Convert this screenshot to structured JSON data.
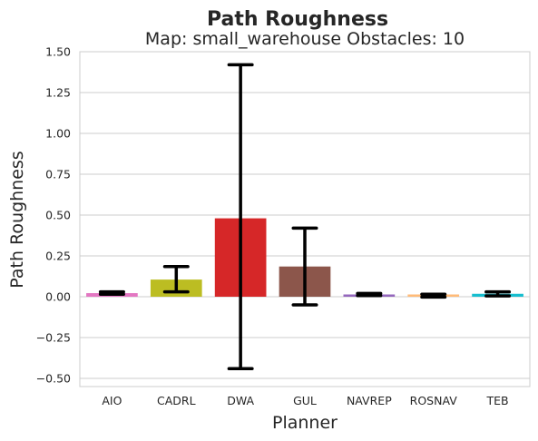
{
  "chart_data": {
    "type": "bar",
    "title": "Path Roughness",
    "subtitle": "Map: small_warehouse Obstacles: 10",
    "xlabel": "Planner",
    "ylabel": "Path Roughness",
    "ylim": [
      -0.55,
      1.5
    ],
    "yticks": [
      -0.5,
      -0.25,
      0.0,
      0.25,
      0.5,
      0.75,
      1.0,
      1.25,
      1.5
    ],
    "ytick_labels": [
      "−0.50",
      "−0.25",
      "0.00",
      "0.25",
      "0.50",
      "0.75",
      "1.00",
      "1.25",
      "1.50"
    ],
    "grid": "horizontal",
    "categories": [
      "AIO",
      "CADRL",
      "DWA",
      "GUL",
      "NAVREP",
      "ROSNAV",
      "TEB"
    ],
    "values": [
      0.022,
      0.105,
      0.48,
      0.185,
      0.013,
      0.005,
      0.018
    ],
    "error_low": [
      0.015,
      0.03,
      -0.44,
      -0.05,
      0.007,
      -0.002,
      0.005
    ],
    "error_high": [
      0.03,
      0.185,
      1.42,
      0.42,
      0.02,
      0.015,
      0.03
    ],
    "colors": [
      "#e377c2",
      "#bcbd22",
      "#d62728",
      "#8c564b",
      "#9467bd",
      "#ffbb78",
      "#17becf"
    ]
  }
}
